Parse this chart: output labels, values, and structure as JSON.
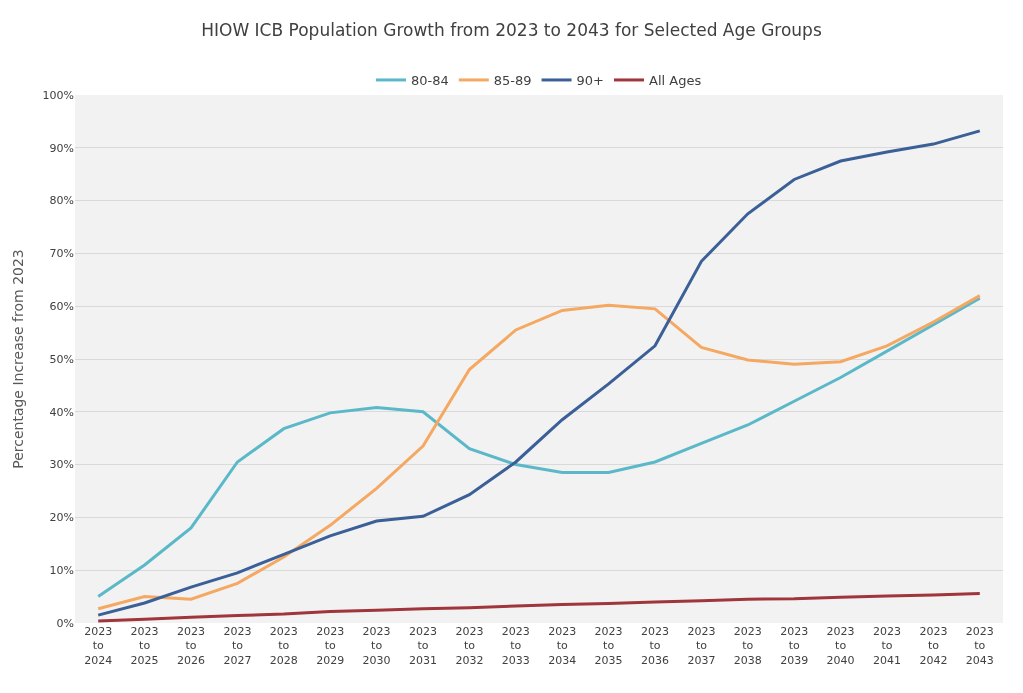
{
  "chart_data": {
    "type": "line",
    "title": "HIOW ICB Population Growth from 2023 to 2043 for Selected Age Groups",
    "ylabel": "Percentage Increase from 2023",
    "categories": [
      "2023\nto\n2024",
      "2023\nto\n2025",
      "2023\nto\n2026",
      "2023\nto\n2027",
      "2023\nto\n2028",
      "2023\nto\n2029",
      "2023\nto\n2030",
      "2023\nto\n2031",
      "2023\nto\n2032",
      "2023\nto\n2033",
      "2023\nto\n2034",
      "2023\nto\n2035",
      "2023\nto\n2036",
      "2023\nto\n2037",
      "2023\nto\n2038",
      "2023\nto\n2039",
      "2023\nto\n2040",
      "2023\nto\n2041",
      "2023\nto\n2042",
      "2023\nto\n2043"
    ],
    "series": [
      {
        "name": "80-84",
        "color": "#5bb8c8",
        "values": [
          5,
          11,
          18,
          30.5,
          36.8,
          39.8,
          40.8,
          40,
          33,
          30,
          28.5,
          28.5,
          30.5,
          34,
          37.5,
          42,
          46.5,
          51.5,
          56.5,
          61.5
        ]
      },
      {
        "name": "85-89",
        "color": "#f4a862",
        "values": [
          2.7,
          5,
          4.5,
          7.5,
          12.5,
          18.5,
          25.5,
          33.5,
          48,
          55.5,
          59.2,
          60.2,
          59.5,
          52.2,
          49.8,
          49,
          49.5,
          52.5,
          57,
          62
        ]
      },
      {
        "name": "90+",
        "color": "#3b5f97",
        "values": [
          1.5,
          3.8,
          6.8,
          9.5,
          13,
          16.5,
          19.3,
          20.2,
          24.3,
          30.5,
          38.5,
          45.3,
          52.5,
          68.5,
          77.5,
          84,
          87.5,
          89.2,
          90.7,
          93.2
        ]
      },
      {
        "name": "All Ages",
        "color": "#a0353c",
        "values": [
          0.4,
          0.7,
          1.1,
          1.4,
          1.7,
          2.2,
          2.4,
          2.7,
          2.9,
          3.2,
          3.5,
          3.7,
          4.0,
          4.2,
          4.5,
          4.6,
          4.9,
          5.1,
          5.3,
          5.6
        ]
      }
    ],
    "ylim": [
      0,
      100
    ],
    "yticks": [
      {
        "value": 0,
        "label": "0%"
      },
      {
        "value": 10,
        "label": "10%"
      },
      {
        "value": 20,
        "label": "20%"
      },
      {
        "value": 30,
        "label": "30%"
      },
      {
        "value": 40,
        "label": "40%"
      },
      {
        "value": 50,
        "label": "50%"
      },
      {
        "value": 60,
        "label": "60%"
      },
      {
        "value": 70,
        "label": "70%"
      },
      {
        "value": 80,
        "label": "80%"
      },
      {
        "value": 90,
        "label": "90%"
      },
      {
        "value": 100,
        "label": "100%"
      }
    ],
    "grid": "y",
    "legend": "top",
    "line_style": "solid"
  }
}
